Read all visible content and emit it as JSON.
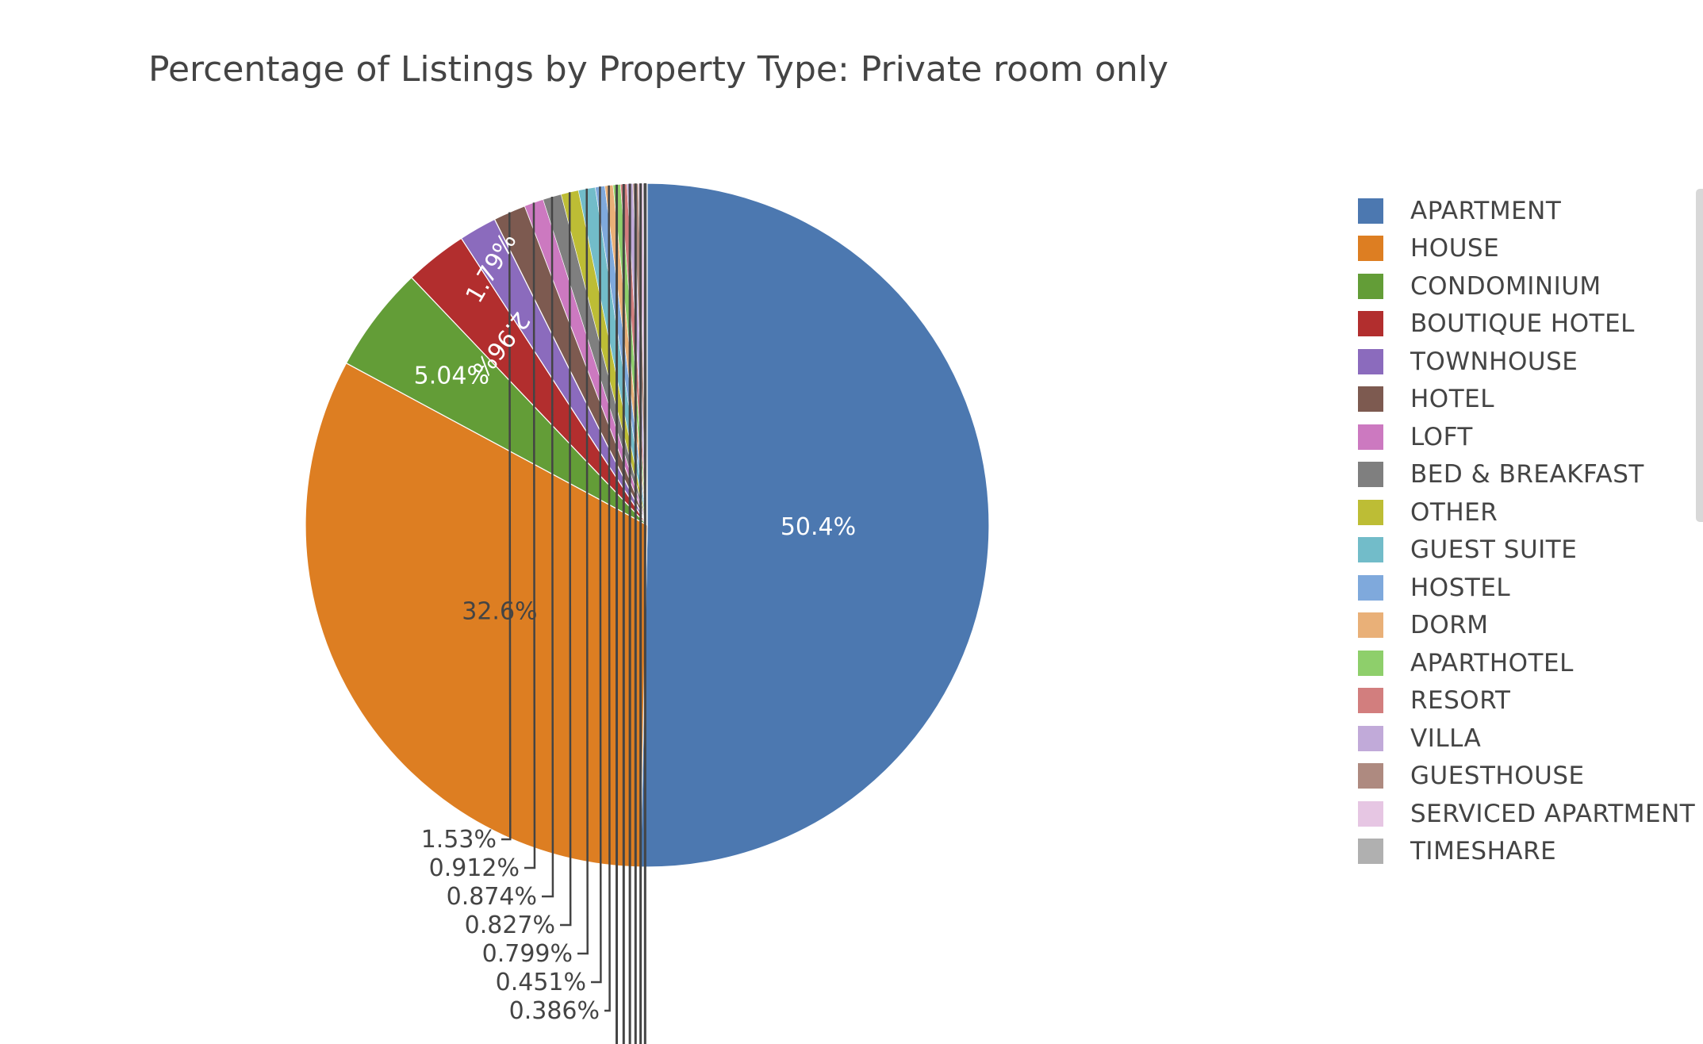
{
  "chart_data": {
    "type": "pie",
    "title": "Percentage of Listings by Property Type: Private room only",
    "slices": [
      {
        "label": "APARTMENT",
        "value": 50.4,
        "text": "50.4%",
        "color": "#4c78b0"
      },
      {
        "label": "HOUSE",
        "value": 32.6,
        "text": "32.6%",
        "color": "#dd7e22"
      },
      {
        "label": "CONDOMINIUM",
        "value": 5.04,
        "text": "5.04%",
        "color": "#639d37"
      },
      {
        "label": "BOUTIQUE HOTEL",
        "value": 2.96,
        "text": "2.96%",
        "color": "#b22e2e"
      },
      {
        "label": "TOWNHOUSE",
        "value": 1.79,
        "text": "1.79%",
        "color": "#8b6bbd"
      },
      {
        "label": "HOTEL",
        "value": 1.53,
        "text": "1.53%",
        "color": "#7d5a50"
      },
      {
        "label": "LOFT",
        "value": 0.912,
        "text": "0.912%",
        "color": "#cc79c0"
      },
      {
        "label": "BED & BREAKFAST",
        "value": 0.874,
        "text": "0.874%",
        "color": "#7f7f7f"
      },
      {
        "label": "OTHER",
        "value": 0.827,
        "text": "0.827%",
        "color": "#bdbd35"
      },
      {
        "label": "GUEST SUITE",
        "value": 0.799,
        "text": "0.799%",
        "color": "#72bcc9"
      },
      {
        "label": "HOSTEL",
        "value": 0.451,
        "text": "0.451%",
        "color": "#7fa9dc"
      },
      {
        "label": "DORM",
        "value": 0.386,
        "text": "0.386%",
        "color": "#e9b078"
      },
      {
        "label": "APARTHOTEL",
        "value": 0.35,
        "text": "",
        "color": "#8ecf6b"
      },
      {
        "label": "RESORT",
        "value": 0.3,
        "text": "",
        "color": "#d27e7e"
      },
      {
        "label": "VILLA",
        "value": 0.28,
        "text": "",
        "color": "#c1aad9"
      },
      {
        "label": "GUESTHOUSE",
        "value": 0.25,
        "text": "",
        "color": "#ae8a80"
      },
      {
        "label": "SERVICED APARTMENT",
        "value": 0.22,
        "text": "",
        "color": "#e6c6e3"
      },
      {
        "label": "TIMESHARE",
        "value": 0.2,
        "text": "",
        "color": "#b0b0b0"
      }
    ],
    "legend_position": "right",
    "direction": "clockwise",
    "start": "top"
  }
}
